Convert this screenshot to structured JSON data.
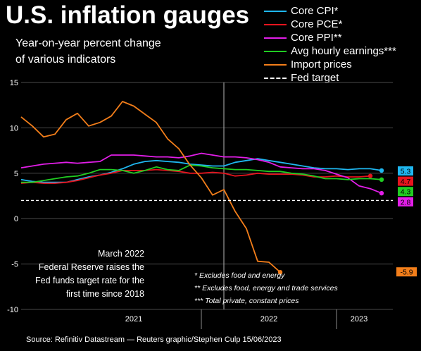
{
  "title": "U.S. inflation gauges",
  "subtitle_line1": "Year-on-year percent change",
  "subtitle_line2": "of various indicators",
  "annotation": [
    "March 2022",
    "Federal Reserve raises the",
    "Fed funds target rate for the",
    "first time since 2018"
  ],
  "notes": [
    "* Excludes food and energy",
    "** Excludes food, energy and trade services",
    "*** Total private, constant prices"
  ],
  "source": "Source: Refinitiv Datastream — Reuters graphic/Stephen Culp 15/06/2023",
  "colors": {
    "background": "#000000",
    "core_cpi": "#1fb7f0",
    "core_pce": "#e6141e",
    "core_ppi": "#e21ee8",
    "avg_hourly_earnings": "#20cc22",
    "import_prices": "#f37e1a",
    "fed_target": "#ffffff"
  },
  "chart_data": {
    "type": "line",
    "title": "U.S. inflation gauges",
    "subtitle": "Year-on-year percent change of various indicators",
    "xlabel": "",
    "ylabel": "",
    "x_unit": "month",
    "x_start": "2020-09",
    "x_tick_labels": [
      "2021",
      "2022",
      "2023"
    ],
    "xlim": [
      "2020-09",
      "2023-06"
    ],
    "ylim": [
      -10,
      15
    ],
    "y_ticks": [
      -10,
      -5,
      0,
      5,
      10,
      15
    ],
    "grid": true,
    "legend_position": "top-right",
    "marker_line_month": "2022-03",
    "series": [
      {
        "name": "Core CPI*",
        "color": "#1fb7f0",
        "end_label": "5.3",
        "points": [
          [
            "2020-09",
            4.3
          ],
          [
            "2020-10",
            4.1
          ],
          [
            "2020-11",
            4.0
          ],
          [
            "2020-12",
            4.0
          ],
          [
            "2021-01",
            4.0
          ],
          [
            "2021-02",
            4.3
          ],
          [
            "2021-03",
            4.6
          ],
          [
            "2021-04",
            4.8
          ],
          [
            "2021-05",
            5.1
          ],
          [
            "2021-06",
            5.5
          ],
          [
            "2021-07",
            6.0
          ],
          [
            "2021-08",
            6.3
          ],
          [
            "2021-09",
            6.4
          ],
          [
            "2021-10",
            6.3
          ],
          [
            "2021-11",
            6.2
          ],
          [
            "2021-12",
            6.0
          ],
          [
            "2022-01",
            5.9
          ],
          [
            "2022-02",
            5.8
          ],
          [
            "2022-03",
            5.8
          ],
          [
            "2022-04",
            6.2
          ],
          [
            "2022-05",
            6.4
          ],
          [
            "2022-06",
            6.6
          ],
          [
            "2022-07",
            6.4
          ],
          [
            "2022-08",
            6.2
          ],
          [
            "2022-09",
            6.0
          ],
          [
            "2022-10",
            5.8
          ],
          [
            "2022-11",
            5.6
          ],
          [
            "2022-12",
            5.5
          ],
          [
            "2023-01",
            5.5
          ],
          [
            "2023-02",
            5.4
          ],
          [
            "2023-03",
            5.5
          ],
          [
            "2023-04",
            5.5
          ],
          [
            "2023-05",
            5.3
          ]
        ]
      },
      {
        "name": "Core PCE*",
        "color": "#e6141e",
        "end_label": "4.7",
        "points": [
          [
            "2020-09",
            3.9
          ],
          [
            "2020-10",
            4.0
          ],
          [
            "2020-11",
            3.9
          ],
          [
            "2020-12",
            3.9
          ],
          [
            "2021-01",
            4.0
          ],
          [
            "2021-02",
            4.2
          ],
          [
            "2021-03",
            4.5
          ],
          [
            "2021-04",
            4.8
          ],
          [
            "2021-05",
            5.0
          ],
          [
            "2021-06",
            5.3
          ],
          [
            "2021-07",
            5.3
          ],
          [
            "2021-08",
            5.3
          ],
          [
            "2021-09",
            5.4
          ],
          [
            "2021-10",
            5.3
          ],
          [
            "2021-11",
            5.2
          ],
          [
            "2021-12",
            5.0
          ],
          [
            "2022-01",
            5.0
          ],
          [
            "2022-02",
            5.1
          ],
          [
            "2022-03",
            5.0
          ],
          [
            "2022-04",
            4.7
          ],
          [
            "2022-05",
            4.8
          ],
          [
            "2022-06",
            5.0
          ],
          [
            "2022-07",
            4.9
          ],
          [
            "2022-08",
            4.9
          ],
          [
            "2022-09",
            4.9
          ],
          [
            "2022-10",
            4.8
          ],
          [
            "2022-11",
            4.6
          ],
          [
            "2022-12",
            4.6
          ],
          [
            "2023-01",
            4.7
          ],
          [
            "2023-02",
            4.6
          ],
          [
            "2023-03",
            4.6
          ],
          [
            "2023-04",
            4.7
          ]
        ]
      },
      {
        "name": "Core PPI**",
        "color": "#e21ee8",
        "end_label": "2.8",
        "points": [
          [
            "2020-09",
            5.6
          ],
          [
            "2020-10",
            5.8
          ],
          [
            "2020-11",
            6.0
          ],
          [
            "2020-12",
            6.1
          ],
          [
            "2021-01",
            6.2
          ],
          [
            "2021-02",
            6.1
          ],
          [
            "2021-03",
            6.2
          ],
          [
            "2021-04",
            6.3
          ],
          [
            "2021-05",
            7.0
          ],
          [
            "2021-06",
            7.0
          ],
          [
            "2021-07",
            7.0
          ],
          [
            "2021-08",
            6.9
          ],
          [
            "2021-09",
            6.8
          ],
          [
            "2021-10",
            6.8
          ],
          [
            "2021-11",
            6.7
          ],
          [
            "2021-12",
            6.9
          ],
          [
            "2022-01",
            7.2
          ],
          [
            "2022-02",
            7.0
          ],
          [
            "2022-03",
            6.8
          ],
          [
            "2022-04",
            6.8
          ],
          [
            "2022-05",
            6.7
          ],
          [
            "2022-06",
            6.5
          ],
          [
            "2022-07",
            6.2
          ],
          [
            "2022-08",
            5.7
          ],
          [
            "2022-09",
            5.6
          ],
          [
            "2022-10",
            5.5
          ],
          [
            "2022-11",
            5.5
          ],
          [
            "2022-12",
            5.3
          ],
          [
            "2023-01",
            4.9
          ],
          [
            "2023-02",
            4.5
          ],
          [
            "2023-03",
            3.6
          ],
          [
            "2023-04",
            3.3
          ],
          [
            "2023-05",
            2.8
          ]
        ]
      },
      {
        "name": "Avg hourly earnings***",
        "color": "#20cc22",
        "end_label": "4.3",
        "points": [
          [
            "2020-09",
            4.0
          ],
          [
            "2020-10",
            4.0
          ],
          [
            "2020-11",
            4.2
          ],
          [
            "2020-12",
            4.4
          ],
          [
            "2021-01",
            4.6
          ],
          [
            "2021-02",
            4.7
          ],
          [
            "2021-03",
            5.0
          ],
          [
            "2021-04",
            5.4
          ],
          [
            "2021-05",
            5.4
          ],
          [
            "2021-06",
            5.3
          ],
          [
            "2021-07",
            5.0
          ],
          [
            "2021-08",
            5.3
          ],
          [
            "2021-09",
            5.7
          ],
          [
            "2021-10",
            5.4
          ],
          [
            "2021-11",
            5.3
          ],
          [
            "2021-12",
            5.9
          ],
          [
            "2022-01",
            5.8
          ],
          [
            "2022-02",
            5.6
          ],
          [
            "2022-03",
            5.5
          ],
          [
            "2022-04",
            5.4
          ],
          [
            "2022-05",
            5.4
          ],
          [
            "2022-06",
            5.3
          ],
          [
            "2022-07",
            5.2
          ],
          [
            "2022-08",
            5.2
          ],
          [
            "2022-09",
            5.0
          ],
          [
            "2022-10",
            4.9
          ],
          [
            "2022-11",
            4.7
          ],
          [
            "2022-12",
            4.4
          ],
          [
            "2023-01",
            4.4
          ],
          [
            "2023-02",
            4.3
          ],
          [
            "2023-03",
            4.4
          ],
          [
            "2023-04",
            4.4
          ],
          [
            "2023-05",
            4.3
          ]
        ]
      },
      {
        "name": "Import prices",
        "color": "#f37e1a",
        "end_label": "-5.9",
        "points": [
          [
            "2020-09",
            11.2
          ],
          [
            "2020-10",
            10.2
          ],
          [
            "2020-11",
            9.0
          ],
          [
            "2020-12",
            9.3
          ],
          [
            "2021-01",
            10.9
          ],
          [
            "2021-02",
            11.6
          ],
          [
            "2021-03",
            10.2
          ],
          [
            "2021-04",
            10.6
          ],
          [
            "2021-05",
            11.3
          ],
          [
            "2021-06",
            12.9
          ],
          [
            "2021-07",
            12.4
          ],
          [
            "2021-08",
            11.5
          ],
          [
            "2021-09",
            10.6
          ],
          [
            "2021-10",
            8.8
          ],
          [
            "2021-11",
            7.7
          ],
          [
            "2021-12",
            5.9
          ],
          [
            "2022-01",
            4.5
          ],
          [
            "2022-02",
            2.6
          ],
          [
            "2022-03",
            3.2
          ],
          [
            "2022-04",
            0.8
          ],
          [
            "2022-05",
            -1.1
          ],
          [
            "2022-06",
            -4.7
          ],
          [
            "2022-07",
            -4.8
          ],
          [
            "2022-08",
            -5.9
          ]
        ]
      },
      {
        "name": "Fed target",
        "color": "#ffffff",
        "dashed": true,
        "points": [
          [
            "2020-09",
            2.0
          ],
          [
            "2023-06",
            2.0
          ]
        ]
      }
    ]
  }
}
